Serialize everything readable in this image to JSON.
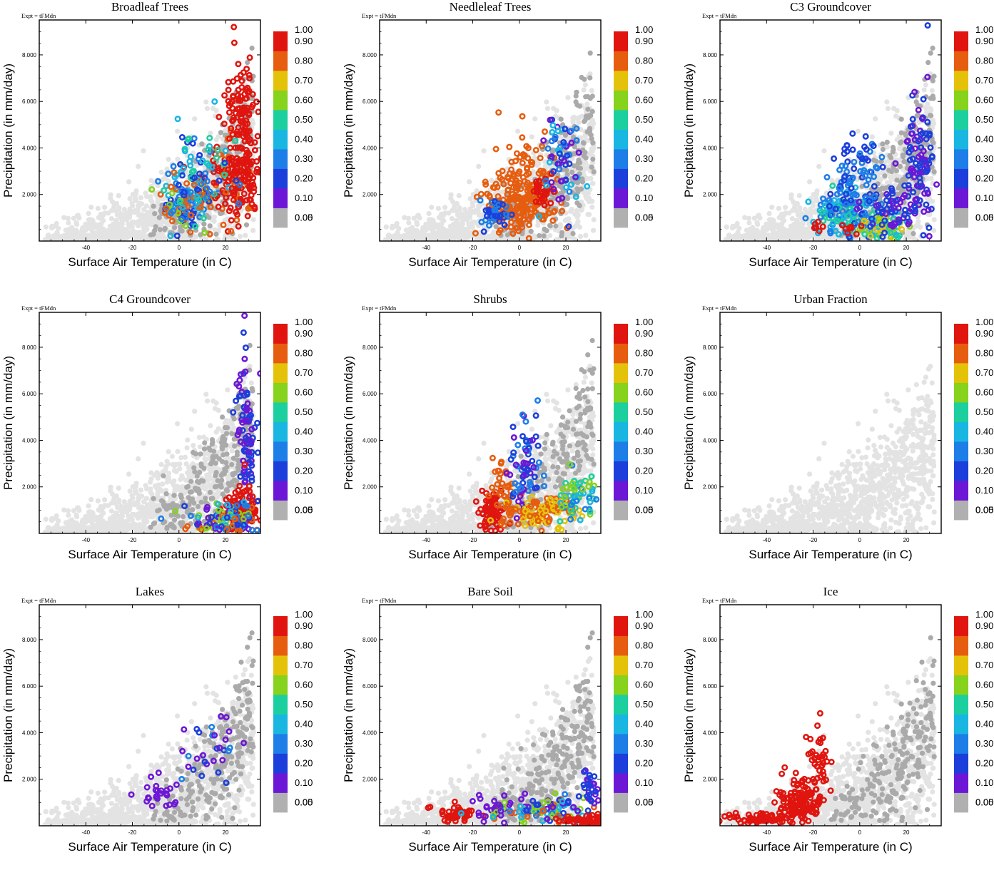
{
  "colors": {
    "light_gray": "#e3e3e3",
    "dark_gray": "#aaaaaa",
    "bins": [
      "#b0b0b0",
      "#6d17d6",
      "#1c3fdb",
      "#1d7ee8",
      "#19b6e2",
      "#1ccf9e",
      "#86d21c",
      "#e5c20a",
      "#e65d0f",
      "#e0150f"
    ]
  },
  "chart_data": [
    {
      "type": "scatter",
      "title": "Broadleaf Trees",
      "expt": "Expt = tFMdn",
      "xlabel": "Surface Air Temperature (in C)",
      "ylabel": "Precipitation (in mm/day)",
      "xlim": [
        -60,
        35
      ],
      "ylim": [
        0,
        9.5
      ],
      "xticks": [
        -40,
        -20,
        0,
        20
      ],
      "xtick_labels": [
        "-40",
        "-20",
        "0",
        "20"
      ],
      "yticks": [
        2,
        4,
        6,
        8
      ],
      "ytick_labels": [
        "2.000",
        "4.000",
        "6.000",
        "8.000"
      ],
      "colorbar": {
        "labels": [
          "0.00",
          "0.05",
          "0.10",
          "0.20",
          "0.30",
          "0.40",
          "0.50",
          "0.60",
          "0.70",
          "0.80",
          "0.90",
          "1.00"
        ]
      },
      "clusters": [
        {
          "cx": 3,
          "cy": 1.7,
          "sx": 6,
          "sy": 0.6,
          "n": 120,
          "c": [
            0.1,
            0.2,
            0.3,
            0.5,
            0.7
          ]
        },
        {
          "cx": 22,
          "cy": 2.6,
          "sx": 6,
          "sy": 0.8,
          "n": 110,
          "c": [
            0.7,
            0.8,
            0.9
          ]
        },
        {
          "cx": 27,
          "cy": 4.8,
          "sx": 3,
          "sy": 1.6,
          "n": 140,
          "c": [
            0.9,
            0.95
          ]
        },
        {
          "cx": 10,
          "cy": 3.0,
          "sx": 8,
          "sy": 0.8,
          "n": 70,
          "c": [
            0.1,
            0.2,
            0.3,
            0.4
          ]
        },
        {
          "cx": 30,
          "cy": 3.0,
          "sx": 3,
          "sy": 0.8,
          "n": 40,
          "c": [
            0.8,
            0.9
          ]
        }
      ]
    },
    {
      "type": "scatter",
      "title": "Needleleaf Trees",
      "expt": "Expt = tFMdn",
      "xlabel": "Surface Air Temperature (in C)",
      "ylabel": "Precipitation (in mm/day)",
      "xlim": [
        -60,
        35
      ],
      "ylim": [
        0,
        9.5
      ],
      "xticks": [
        -40,
        -20,
        0,
        20
      ],
      "xtick_labels": [
        "-40",
        "-20",
        "0",
        "20"
      ],
      "yticks": [
        2,
        4,
        6,
        8
      ],
      "ytick_labels": [
        "2.000",
        "4.000",
        "6.000",
        "8.000"
      ],
      "colorbar": {
        "labels": [
          "0.00",
          "0.05",
          "0.10",
          "0.20",
          "0.30",
          "0.40",
          "0.50",
          "0.60",
          "0.70",
          "0.80",
          "0.90",
          "1.00"
        ]
      },
      "clusters": [
        {
          "cx": 0,
          "cy": 1.6,
          "sx": 7,
          "sy": 0.5,
          "n": 160,
          "c": [
            0.7,
            0.75
          ]
        },
        {
          "cx": 3,
          "cy": 3.0,
          "sx": 7,
          "sy": 0.9,
          "n": 70,
          "c": [
            0.7,
            0.75
          ]
        },
        {
          "cx": 10,
          "cy": 2.0,
          "sx": 3,
          "sy": 0.4,
          "n": 30,
          "c": [
            0.8,
            0.85
          ]
        },
        {
          "cx": 18,
          "cy": 3.5,
          "sx": 4,
          "sy": 1.0,
          "n": 60,
          "c": [
            0.05,
            0.1,
            0.2,
            0.3
          ]
        },
        {
          "cx": -10,
          "cy": 1.2,
          "sx": 3,
          "sy": 0.3,
          "n": 40,
          "c": [
            0.1,
            0.2
          ]
        }
      ]
    },
    {
      "type": "scatter",
      "title": "C3 Groundcover",
      "expt": "Expt = tFMdn",
      "xlabel": "Surface Air Temperature (in C)",
      "ylabel": "Precipitation (in mm/day)",
      "xlim": [
        -60,
        35
      ],
      "ylim": [
        0,
        9.5
      ],
      "xticks": [
        -40,
        -20,
        0,
        20
      ],
      "xtick_labels": [
        "-40",
        "-20",
        "0",
        "20"
      ],
      "yticks": [
        2,
        4,
        6,
        8
      ],
      "ytick_labels": [
        "2.000",
        "4.000",
        "6.000",
        "8.000"
      ],
      "colorbar": {
        "labels": [
          "0.00",
          "0.05",
          "0.10",
          "0.20",
          "0.30",
          "0.40",
          "0.50",
          "0.60",
          "0.70",
          "0.80",
          "0.90",
          "1.00"
        ]
      },
      "clusters": [
        {
          "cx": -8,
          "cy": 1.2,
          "sx": 6,
          "sy": 0.5,
          "n": 110,
          "c": [
            0.2,
            0.3,
            0.4
          ]
        },
        {
          "cx": -2,
          "cy": 2.6,
          "sx": 6,
          "sy": 1.0,
          "n": 100,
          "c": [
            0.1,
            0.2
          ]
        },
        {
          "cx": 12,
          "cy": 0.6,
          "sx": 6,
          "sy": 0.3,
          "n": 60,
          "c": [
            0.3,
            0.4,
            0.5,
            0.6
          ]
        },
        {
          "cx": 26,
          "cy": 3.4,
          "sx": 3,
          "sy": 1.6,
          "n": 90,
          "c": [
            0.05,
            0.1
          ]
        },
        {
          "cx": 14,
          "cy": 1.5,
          "sx": 6,
          "sy": 0.6,
          "n": 60,
          "c": [
            0.05,
            0.1
          ]
        },
        {
          "cx": -18,
          "cy": 0.6,
          "sx": 1,
          "sy": 0.1,
          "n": 6,
          "c": [
            0.95
          ]
        },
        {
          "cx": -2,
          "cy": 0.6,
          "sx": 4,
          "sy": 0.2,
          "n": 8,
          "c": [
            0.85,
            0.95
          ]
        }
      ]
    },
    {
      "type": "scatter",
      "title": "C4 Groundcover",
      "expt": "Expt = tFMdn",
      "xlabel": "Surface Air Temperature (in C)",
      "ylabel": "Precipitation (in mm/day)",
      "xlim": [
        -60,
        35
      ],
      "ylim": [
        0,
        9.5
      ],
      "xticks": [
        -40,
        -20,
        0,
        20
      ],
      "xtick_labels": [
        "-40",
        "-20",
        "0",
        "20"
      ],
      "yticks": [
        2,
        4,
        6,
        8
      ],
      "ytick_labels": [
        "2.000",
        "4.000",
        "6.000",
        "8.000"
      ],
      "colorbar": {
        "labels": [
          "0.00",
          "0.05",
          "0.10",
          "0.20",
          "0.30",
          "0.40",
          "0.50",
          "0.60",
          "0.70",
          "0.80",
          "0.90",
          "1.00"
        ]
      },
      "clusters": [
        {
          "cx": 29,
          "cy": 4.0,
          "sx": 2,
          "sy": 2.0,
          "n": 100,
          "c": [
            0.05,
            0.1
          ]
        },
        {
          "cx": 27,
          "cy": 1.0,
          "sx": 4,
          "sy": 0.5,
          "n": 100,
          "c": [
            0.8,
            0.9
          ]
        },
        {
          "cx": 20,
          "cy": 0.6,
          "sx": 8,
          "sy": 0.4,
          "n": 110,
          "c": [
            0.05,
            0.1,
            0.2,
            0.3,
            0.5,
            0.7
          ]
        }
      ]
    },
    {
      "type": "scatter",
      "title": "Shrubs",
      "expt": "Expt = tFMdn",
      "xlabel": "Surface Air Temperature (in C)",
      "ylabel": "Precipitation (in mm/day)",
      "xlim": [
        -60,
        35
      ],
      "ylim": [
        0,
        9.5
      ],
      "xticks": [
        -40,
        -20,
        0,
        20
      ],
      "xtick_labels": [
        "-40",
        "-20",
        "0",
        "20"
      ],
      "yticks": [
        2,
        4,
        6,
        8
      ],
      "ytick_labels": [
        "2.000",
        "4.000",
        "6.000",
        "8.000"
      ],
      "colorbar": {
        "labels": [
          "0.00",
          "0.05",
          "0.10",
          "0.20",
          "0.30",
          "0.40",
          "0.50",
          "0.60",
          "0.70",
          "0.80",
          "0.90",
          "1.00"
        ]
      },
      "clusters": [
        {
          "cx": -12,
          "cy": 1.0,
          "sx": 3,
          "sy": 0.4,
          "n": 70,
          "c": [
            0.8,
            0.85
          ]
        },
        {
          "cx": -6,
          "cy": 1.8,
          "sx": 3,
          "sy": 0.6,
          "n": 40,
          "c": [
            0.7
          ]
        },
        {
          "cx": 2,
          "cy": 2.8,
          "sx": 4,
          "sy": 1.1,
          "n": 70,
          "c": [
            0.05,
            0.1,
            0.2
          ]
        },
        {
          "cx": 10,
          "cy": 0.9,
          "sx": 8,
          "sy": 0.3,
          "n": 110,
          "c": [
            0.6,
            0.7
          ]
        },
        {
          "cx": 24,
          "cy": 1.6,
          "sx": 5,
          "sy": 0.5,
          "n": 60,
          "c": [
            0.2,
            0.3,
            0.4,
            0.5
          ]
        }
      ]
    },
    {
      "type": "scatter",
      "title": "Urban Fraction",
      "expt": "Expt = tFMdn",
      "xlabel": "Surface Air Temperature (in C)",
      "ylabel": "Precipitation (in mm/day)",
      "xlim": [
        -60,
        35
      ],
      "ylim": [
        0,
        9.5
      ],
      "xticks": [
        -40,
        -20,
        0,
        20
      ],
      "xtick_labels": [
        "-40",
        "-20",
        "0",
        "20"
      ],
      "yticks": [
        2,
        4,
        6,
        8
      ],
      "ytick_labels": [
        "2.000",
        "4.000",
        "6.000",
        "8.000"
      ],
      "colorbar": {
        "labels": [
          "0.00",
          "0.05",
          "0.10",
          "0.20",
          "0.30",
          "0.40",
          "0.50",
          "0.60",
          "0.70",
          "0.80",
          "0.90",
          "1.00"
        ]
      },
      "clusters": []
    },
    {
      "type": "scatter",
      "title": "Lakes",
      "expt": "Expt = tFMdn",
      "xlabel": "Surface Air Temperature (in C)",
      "ylabel": "Precipitation (in mm/day)",
      "xlim": [
        -60,
        35
      ],
      "ylim": [
        0,
        9.5
      ],
      "xticks": [
        -40,
        -20,
        0,
        20
      ],
      "xtick_labels": [
        "-40",
        "-20",
        "0",
        "20"
      ],
      "yticks": [
        2,
        4,
        6,
        8
      ],
      "ytick_labels": [
        "2.000",
        "4.000",
        "6.000",
        "8.000"
      ],
      "colorbar": {
        "labels": [
          "0.00",
          "0.05",
          "0.10",
          "0.20",
          "0.30",
          "0.40",
          "0.50",
          "0.60",
          "0.70",
          "0.80",
          "0.90",
          "1.00"
        ]
      },
      "clusters": [
        {
          "cx": -8,
          "cy": 1.4,
          "sx": 5,
          "sy": 0.3,
          "n": 25,
          "c": [
            0.05
          ]
        },
        {
          "cx": 12,
          "cy": 3.4,
          "sx": 8,
          "sy": 0.8,
          "n": 30,
          "c": [
            0.05,
            0.1,
            0.2
          ]
        }
      ]
    },
    {
      "type": "scatter",
      "title": "Bare Soil",
      "expt": "Expt = tFMdn",
      "xlabel": "Surface Air Temperature (in C)",
      "ylabel": "Precipitation (in mm/day)",
      "xlim": [
        -60,
        35
      ],
      "ylim": [
        0,
        9.5
      ],
      "xticks": [
        -40,
        -20,
        0,
        20
      ],
      "xtick_labels": [
        "-40",
        "-20",
        "0",
        "20"
      ],
      "yticks": [
        2,
        4,
        6,
        8
      ],
      "ytick_labels": [
        "2.000",
        "4.000",
        "6.000",
        "8.000"
      ],
      "colorbar": {
        "labels": [
          "0.00",
          "0.05",
          "0.10",
          "0.20",
          "0.30",
          "0.40",
          "0.50",
          "0.60",
          "0.70",
          "0.80",
          "0.90",
          "1.00"
        ]
      },
      "clusters": [
        {
          "cx": -28,
          "cy": 0.5,
          "sx": 5,
          "sy": 0.2,
          "n": 45,
          "c": [
            0.95
          ]
        },
        {
          "cx": -12,
          "cy": 0.8,
          "sx": 5,
          "sy": 0.3,
          "n": 25,
          "c": [
            0.05
          ]
        },
        {
          "cx": 10,
          "cy": 0.7,
          "sx": 10,
          "sy": 0.25,
          "n": 110,
          "c": [
            0.05,
            0.1,
            0.2,
            0.3,
            0.5,
            0.7
          ]
        },
        {
          "cx": 28,
          "cy": 0.2,
          "sx": 5,
          "sy": 0.15,
          "n": 60,
          "c": [
            0.95
          ]
        },
        {
          "cx": 30,
          "cy": 1.5,
          "sx": 2,
          "sy": 0.5,
          "n": 30,
          "c": [
            0.05,
            0.1
          ]
        }
      ]
    },
    {
      "type": "scatter",
      "title": "Ice",
      "expt": "Expt = tFMdn",
      "xlabel": "Surface Air Temperature (in C)",
      "ylabel": "Precipitation (in mm/day)",
      "xlim": [
        -60,
        35
      ],
      "ylim": [
        0,
        9.5
      ],
      "xticks": [
        -40,
        -20,
        0,
        20
      ],
      "xtick_labels": [
        "-40",
        "-20",
        "0",
        "20"
      ],
      "yticks": [
        2,
        4,
        6,
        8
      ],
      "ytick_labels": [
        "2.000",
        "4.000",
        "6.000",
        "8.000"
      ],
      "colorbar": {
        "labels": [
          "0.00",
          "0.05",
          "0.10",
          "0.20",
          "0.30",
          "0.40",
          "0.50",
          "0.60",
          "0.70",
          "0.80",
          "0.90",
          "1.00"
        ]
      },
      "clusters": [
        {
          "cx": -44,
          "cy": 0.3,
          "sx": 8,
          "sy": 0.12,
          "n": 70,
          "c": [
            0.95
          ]
        },
        {
          "cx": -26,
          "cy": 1.1,
          "sx": 5,
          "sy": 0.5,
          "n": 130,
          "c": [
            0.95
          ]
        },
        {
          "cx": -18,
          "cy": 2.6,
          "sx": 3,
          "sy": 0.9,
          "n": 45,
          "c": [
            0.95
          ]
        }
      ]
    }
  ]
}
